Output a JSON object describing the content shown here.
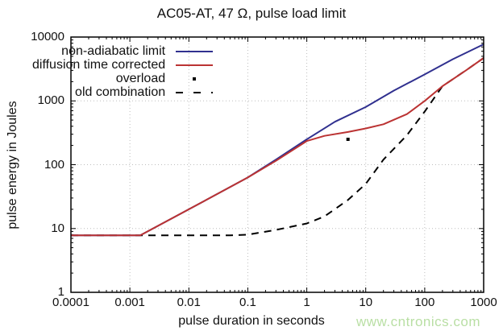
{
  "watermark": {
    "text": "www.cntronics.com",
    "color": "#b9dfa4"
  },
  "legend": {
    "items": [
      {
        "label": "non-adiabatic limit",
        "swatch": "line",
        "color": "#30308f"
      },
      {
        "label": "diffusion time corrected",
        "swatch": "line",
        "color": "#bb3333"
      },
      {
        "label": "overload",
        "swatch": "dot",
        "color": "#000000"
      },
      {
        "label": "old combination",
        "swatch": "dash",
        "color": "#000000"
      }
    ]
  },
  "chart_data": {
    "type": "line",
    "title": "AC05-AT, 47 Ω, pulse load limit",
    "xlabel": "pulse duration in seconds",
    "ylabel": "pulse energy in Joules",
    "xscale": "log",
    "yscale": "log",
    "xlim": [
      0.0001,
      1000
    ],
    "ylim": [
      1,
      10000
    ],
    "grid": true,
    "legend_position": "top-left-inside",
    "x_ticks": [
      {
        "v": 0.0001,
        "label": "0.0001"
      },
      {
        "v": 0.001,
        "label": "0.001"
      },
      {
        "v": 0.01,
        "label": "0.01"
      },
      {
        "v": 0.1,
        "label": "0.1"
      },
      {
        "v": 1,
        "label": "1"
      },
      {
        "v": 10,
        "label": "10"
      },
      {
        "v": 100,
        "label": "100"
      },
      {
        "v": 1000,
        "label": "1000"
      }
    ],
    "y_ticks": [
      {
        "v": 1,
        "label": "1"
      },
      {
        "v": 10,
        "label": "10"
      },
      {
        "v": 100,
        "label": "100"
      },
      {
        "v": 1000,
        "label": "1000"
      },
      {
        "v": 10000,
        "label": "10000"
      }
    ],
    "series": [
      {
        "name": "non-adiabatic limit",
        "color": "#30308f",
        "style": "solid",
        "points": [
          [
            0.0001,
            7.8
          ],
          [
            0.0015,
            7.8
          ],
          [
            0.01,
            20
          ],
          [
            0.1,
            63
          ],
          [
            0.3,
            120
          ],
          [
            1,
            250
          ],
          [
            3,
            470
          ],
          [
            10,
            800
          ],
          [
            30,
            1450
          ],
          [
            100,
            2600
          ],
          [
            300,
            4500
          ],
          [
            1000,
            7700
          ]
        ]
      },
      {
        "name": "diffusion time corrected",
        "color": "#bb3333",
        "style": "solid",
        "points": [
          [
            0.0001,
            7.8
          ],
          [
            0.0015,
            7.8
          ],
          [
            0.01,
            20
          ],
          [
            0.1,
            63
          ],
          [
            0.3,
            115
          ],
          [
            1,
            235
          ],
          [
            2,
            283
          ],
          [
            5,
            325
          ],
          [
            10,
            370
          ],
          [
            20,
            430
          ],
          [
            50,
            620
          ],
          [
            100,
            1000
          ],
          [
            200,
            1700
          ],
          [
            500,
            3000
          ],
          [
            1000,
            4700
          ]
        ]
      },
      {
        "name": "overload",
        "color": "#000000",
        "style": "points",
        "points": [
          [
            5,
            250
          ]
        ]
      },
      {
        "name": "old combination",
        "color": "#000000",
        "style": "dashed",
        "points": [
          [
            0.0001,
            7.8
          ],
          [
            0.05,
            7.8
          ],
          [
            0.1,
            8
          ],
          [
            0.3,
            9.5
          ],
          [
            1,
            12
          ],
          [
            2,
            15.5
          ],
          [
            5,
            28
          ],
          [
            10,
            50
          ],
          [
            20,
            120
          ],
          [
            50,
            290
          ],
          [
            100,
            680
          ],
          [
            200,
            1700
          ],
          [
            500,
            3000
          ],
          [
            1000,
            4700
          ]
        ]
      }
    ]
  }
}
